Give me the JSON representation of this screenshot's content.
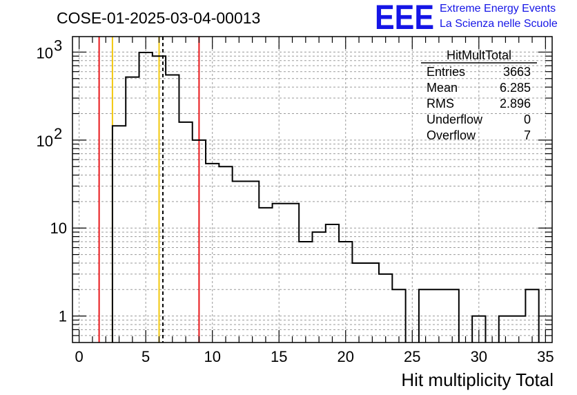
{
  "header": {
    "run_title": "COSE-01-2025-03-04-00013",
    "logo_text": "EEE",
    "logo_line1": "Extreme Energy Events",
    "logo_line2": "La Scienza nelle Scuole",
    "logo_color": "#1515e6"
  },
  "stats_box": {
    "name": "HitMultTotal",
    "rows": [
      {
        "label": "Entries",
        "value": "3663"
      },
      {
        "label": "Mean",
        "value": "6.285"
      },
      {
        "label": "RMS",
        "value": "2.896"
      },
      {
        "label": "Underflow",
        "value": "0"
      },
      {
        "label": "Overflow",
        "value": "7"
      }
    ]
  },
  "chart_data": {
    "type": "bar",
    "subtype": "step-histogram",
    "xlabel": "Hit multiplicity Total",
    "ylabel": "",
    "xlim": [
      -0.5,
      35.5
    ],
    "ylim": [
      0.5,
      1500
    ],
    "y_scale": "log",
    "grid": true,
    "x_ticks": [
      0,
      5,
      10,
      15,
      20,
      25,
      30,
      35
    ],
    "y_ticks": [
      {
        "value": 1,
        "label": "1"
      },
      {
        "value": 10,
        "label": "10"
      },
      {
        "value": 100,
        "label": "10",
        "exp": "2"
      },
      {
        "value": 1000,
        "label": "10",
        "exp": "3"
      }
    ],
    "bin_width": 1,
    "bins": [
      {
        "x": 0,
        "count": 0
      },
      {
        "x": 1,
        "count": 0
      },
      {
        "x": 2,
        "count": 0
      },
      {
        "x": 3,
        "count": 145
      },
      {
        "x": 4,
        "count": 520
      },
      {
        "x": 5,
        "count": 990
      },
      {
        "x": 6,
        "count": 900
      },
      {
        "x": 7,
        "count": 550
      },
      {
        "x": 8,
        "count": 160
      },
      {
        "x": 9,
        "count": 100
      },
      {
        "x": 10,
        "count": 54
      },
      {
        "x": 11,
        "count": 50
      },
      {
        "x": 12,
        "count": 34
      },
      {
        "x": 13,
        "count": 34
      },
      {
        "x": 14,
        "count": 17
      },
      {
        "x": 15,
        "count": 19
      },
      {
        "x": 16,
        "count": 19
      },
      {
        "x": 17,
        "count": 7
      },
      {
        "x": 18,
        "count": 9
      },
      {
        "x": 19,
        "count": 11
      },
      {
        "x": 20,
        "count": 7
      },
      {
        "x": 21,
        "count": 4
      },
      {
        "x": 22,
        "count": 4
      },
      {
        "x": 23,
        "count": 3
      },
      {
        "x": 24,
        "count": 2
      },
      {
        "x": 25,
        "count": 0
      },
      {
        "x": 26,
        "count": 2
      },
      {
        "x": 27,
        "count": 2
      },
      {
        "x": 28,
        "count": 2
      },
      {
        "x": 29,
        "count": 0
      },
      {
        "x": 30,
        "count": 1
      },
      {
        "x": 31,
        "count": 0
      },
      {
        "x": 32,
        "count": 1
      },
      {
        "x": 33,
        "count": 1
      },
      {
        "x": 34,
        "count": 2
      }
    ],
    "markers": [
      {
        "name": "red-line-left",
        "x": 1.5,
        "color": "#e8171b",
        "style": "solid"
      },
      {
        "name": "yellow-line-left",
        "x": 2.5,
        "color": "#f2c80f",
        "style": "solid"
      },
      {
        "name": "yellow-line-right",
        "x": 6.0,
        "color": "#f2c80f",
        "style": "solid"
      },
      {
        "name": "mean-line",
        "x": 6.285,
        "color": "#000000",
        "style": "dashed"
      },
      {
        "name": "red-line-right",
        "x": 9.0,
        "color": "#e8171b",
        "style": "solid"
      }
    ]
  }
}
